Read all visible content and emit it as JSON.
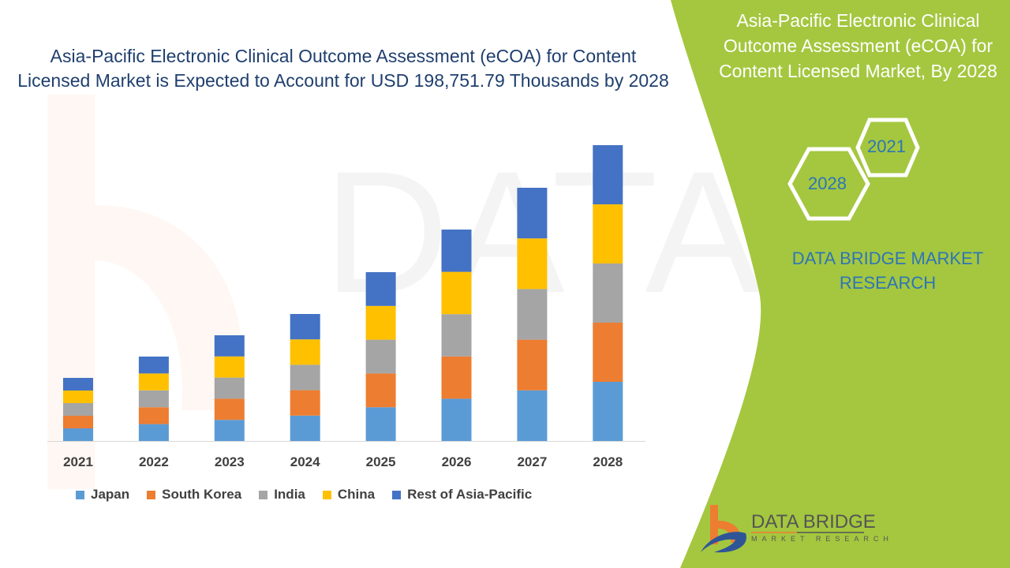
{
  "title": "Asia-Pacific Electronic Clinical Outcome Assessment (eCOA) for Content Licensed Market is Expected to Account for USD 198,751.79 Thousands by 2028",
  "side_panel": {
    "title": "Asia-Pacific Electronic Clinical Outcome Assessment (eCOA) for Content Licensed Market, By 2028",
    "hex_years": [
      "2021",
      "2028"
    ],
    "brand": "DATA BRIDGE MARKET RESEARCH",
    "background_color": "#a4c73f"
  },
  "logo": {
    "name": "DATA BRIDGE",
    "tagline": "MARKET RESEARCH"
  },
  "watermark": "DATA BRIDGE MARKET RESEARCH",
  "chart_data": {
    "type": "bar",
    "stacked": true,
    "categories": [
      "2021",
      "2022",
      "2023",
      "2024",
      "2025",
      "2026",
      "2027",
      "2028"
    ],
    "series": [
      {
        "name": "Japan",
        "color": "#5b9bd5",
        "values": [
          16,
          21.4,
          26.8,
          32.2,
          42.8,
          53.6,
          64.2,
          75
        ]
      },
      {
        "name": "South Korea",
        "color": "#ed7d31",
        "values": [
          16,
          21.4,
          26.8,
          32.2,
          42.8,
          53.6,
          64.2,
          75
        ]
      },
      {
        "name": "India",
        "color": "#a5a5a5",
        "values": [
          16,
          21.4,
          26.8,
          32.2,
          42.8,
          53.6,
          64.2,
          75
        ]
      },
      {
        "name": "China",
        "color": "#ffc000",
        "values": [
          16,
          21.4,
          26.8,
          32.2,
          42.8,
          53.6,
          64.2,
          75
        ]
      },
      {
        "name": "Rest of Asia-Pacific",
        "color": "#4472c4",
        "values": [
          16,
          21.4,
          26.8,
          32.2,
          42.8,
          53.6,
          64.2,
          75
        ]
      }
    ],
    "value_axis_shown": false,
    "grid": false,
    "legend_placement": "bottom"
  }
}
